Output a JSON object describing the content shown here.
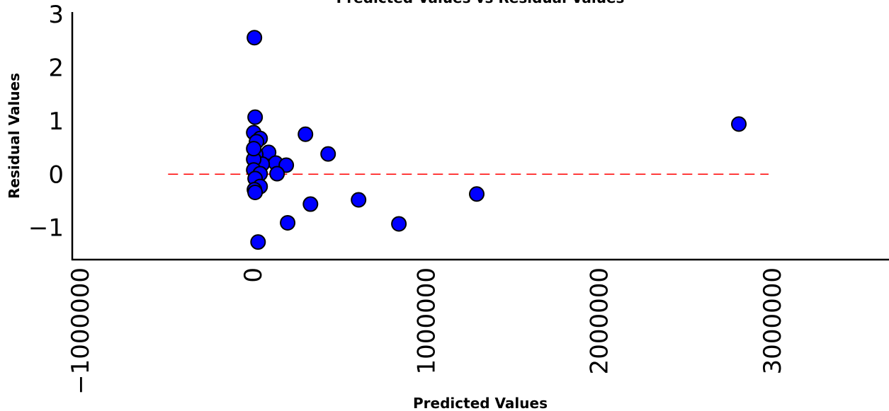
{
  "chart_data": {
    "type": "scatter",
    "title": "Predicted Values vs Residual Values",
    "x_label": "Predicted Values",
    "y_label": "Residual Values",
    "color": "#0000ff",
    "edge_color": "#000000",
    "grid": false,
    "xlim": [
      -1045000,
      3676000
    ],
    "ylim": [
      -1.6,
      3.04
    ],
    "xticks": [
      {
        "value": -1000000,
        "label": "−1000000"
      },
      0,
      1000000,
      2000000,
      3000000
    ],
    "yticks": [
      {
        "value": -1,
        "label": "−1"
      },
      0,
      1,
      2,
      3
    ],
    "hline": {
      "y": 0,
      "x": [
        -491000,
        2980000
      ],
      "color": "#ff0000",
      "style": "dashed"
    },
    "x": [
      8000,
      12000,
      4000,
      303000,
      41000,
      20000,
      90000,
      434000,
      16000,
      131000,
      192000,
      53000,
      4000,
      4000,
      139000,
      41000,
      12000,
      41000,
      8000,
      12000,
      1293000,
      610000,
      332000,
      200000,
      843000,
      29000,
      2808000,
      4000
    ],
    "y": [
      2.56,
      1.07,
      0.78,
      0.75,
      0.67,
      0.61,
      0.41,
      0.38,
      0.37,
      0.21,
      0.17,
      0.19,
      0.28,
      0.08,
      0.01,
      0.01,
      -0.08,
      -0.23,
      -0.29,
      -0.34,
      -0.37,
      -0.48,
      -0.56,
      -0.91,
      -0.93,
      -1.27,
      0.94,
      0.48
    ]
  }
}
